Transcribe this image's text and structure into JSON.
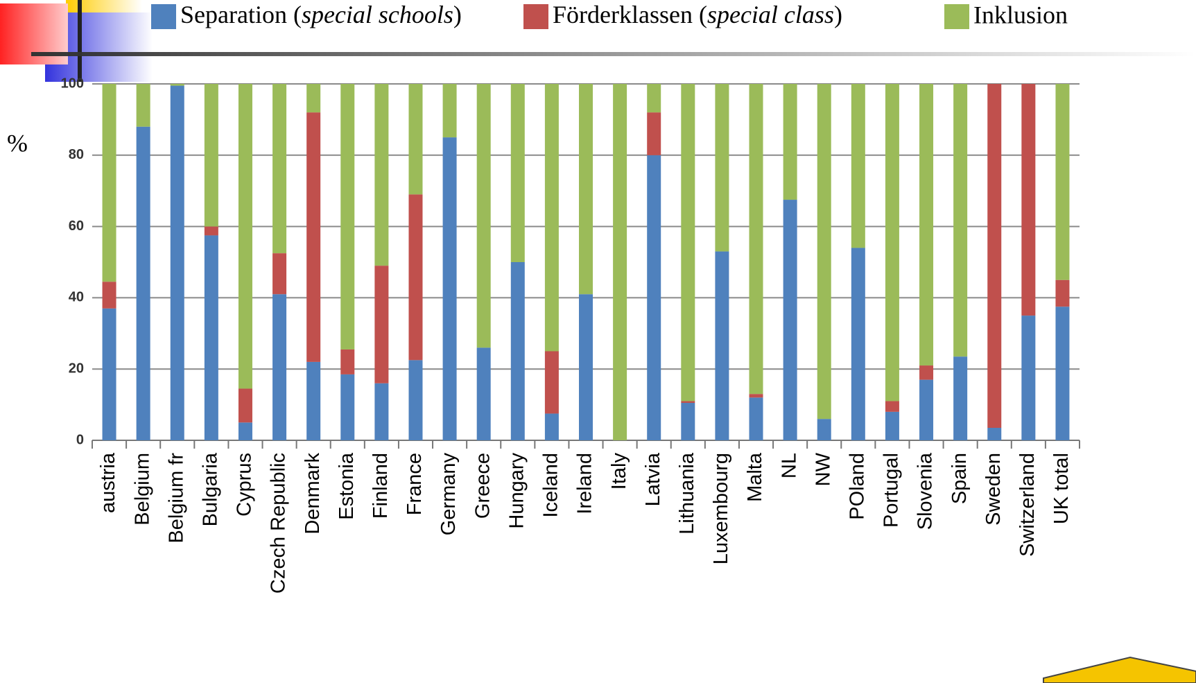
{
  "chart_data": {
    "type": "stacked_bar",
    "y_label": "%",
    "categories": [
      "austria",
      "Belgium",
      "Belgium fr",
      "Bulgaria",
      "Cyprus",
      "Czech Republic",
      "Denmark",
      "Estonia",
      "Finland",
      "France",
      "Germany",
      "Greece",
      "Hungary",
      "Iceland",
      "Ireland",
      "Italy",
      "Latvia",
      "Lithuania",
      "Luxembourg",
      "Malta",
      "NL",
      "NW",
      "POland",
      "Portugal",
      "Slovenia",
      "Spain",
      "Sweden",
      "Switzerland",
      "UK total"
    ],
    "series": [
      {
        "name": "Separation (special schools)",
        "color": "#4f81bd",
        "values": [
          37,
          88,
          99.5,
          57.5,
          5,
          41,
          22,
          18.5,
          16,
          22.5,
          85,
          26,
          50,
          7.5,
          41,
          0,
          80,
          10.5,
          53,
          12,
          67.5,
          6,
          54,
          8,
          17,
          23.5,
          3.5,
          35,
          37.5
        ]
      },
      {
        "name": "Förderklassen (special class)",
        "color": "#c0504d",
        "values": [
          7.5,
          0,
          0,
          2.5,
          9.5,
          11.5,
          70,
          7,
          33,
          46.5,
          0,
          0,
          0,
          17.5,
          0,
          0,
          12,
          0.5,
          0,
          1,
          0,
          0,
          0,
          3,
          4,
          0,
          96.5,
          65,
          7.5
        ]
      },
      {
        "name": "Inklusion",
        "color": "#9bbb59",
        "values": [
          55.5,
          12,
          0.5,
          40,
          85.5,
          47.5,
          8,
          74.5,
          51,
          31,
          15,
          74,
          50,
          75,
          59,
          100,
          8,
          89,
          47,
          87,
          32.5,
          94,
          46,
          89,
          79,
          76.5,
          0,
          0,
          55
        ]
      }
    ],
    "ylim": [
      0,
      100
    ],
    "yticks": [
      0,
      20,
      40,
      60,
      80,
      100
    ],
    "grid": true
  }
}
